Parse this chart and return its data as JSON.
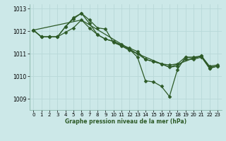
{
  "xlabel": "Graphe pression niveau de la mer (hPa)",
  "ylabel": "",
  "bg_color": "#cce8e8",
  "grid_color": "#b8d8d8",
  "line_color": "#2d5a27",
  "xlim": [
    -0.5,
    23.5
  ],
  "ylim": [
    1008.5,
    1013.2
  ],
  "yticks": [
    1009,
    1010,
    1011,
    1012,
    1013
  ],
  "xticks": [
    0,
    1,
    2,
    3,
    4,
    5,
    6,
    7,
    8,
    9,
    10,
    11,
    12,
    13,
    14,
    15,
    16,
    17,
    18,
    19,
    20,
    21,
    22,
    23
  ],
  "series": [
    {
      "x": [
        0,
        1,
        2,
        3,
        4,
        5,
        6,
        7,
        8,
        9,
        10,
        11,
        12,
        13,
        14,
        15,
        16,
        17,
        18,
        19,
        20,
        21,
        22,
        23
      ],
      "y": [
        1012.05,
        1011.75,
        1011.75,
        1011.75,
        1012.2,
        1012.6,
        1012.8,
        1012.35,
        1011.85,
        1011.65,
        1011.55,
        1011.4,
        1011.25,
        1011.1,
        1010.75,
        1010.65,
        1010.55,
        1010.5,
        1010.55,
        1010.85,
        1010.8,
        1010.9,
        1010.45,
        1010.5
      ],
      "has_markers": true
    },
    {
      "x": [
        0,
        1,
        2,
        3,
        4,
        5,
        6,
        7,
        8,
        9,
        10,
        11,
        12,
        13,
        14,
        15,
        16,
        17,
        18,
        19,
        20,
        21,
        22,
        23
      ],
      "y": [
        1012.05,
        1011.75,
        1011.75,
        1011.75,
        1011.95,
        1012.15,
        1012.5,
        1012.15,
        1011.85,
        1011.65,
        1011.55,
        1011.35,
        1011.15,
        1011.0,
        1010.75,
        1010.65,
        1010.55,
        1010.4,
        1010.45,
        1010.75,
        1010.75,
        1010.85,
        1010.35,
        1010.45
      ],
      "has_markers": true
    },
    {
      "x": [
        0,
        1,
        2,
        3,
        4,
        5,
        6,
        7,
        8,
        9,
        10,
        11,
        12,
        13,
        14,
        15,
        16,
        17,
        18,
        19,
        20,
        21,
        22,
        23
      ],
      "y": [
        1012.05,
        1011.75,
        1011.75,
        1011.75,
        1012.2,
        1012.55,
        1012.8,
        1012.5,
        1012.15,
        1012.1,
        1011.5,
        1011.35,
        1011.2,
        1010.85,
        1009.8,
        1009.75,
        1009.55,
        1009.1,
        1010.3,
        1010.85,
        1010.85,
        1010.9,
        1010.35,
        1010.45
      ],
      "has_markers": true
    },
    {
      "x": [
        0,
        6,
        13,
        17,
        20,
        21,
        22,
        23
      ],
      "y": [
        1012.05,
        1012.5,
        1011.0,
        1010.4,
        1010.8,
        1010.9,
        1010.4,
        1010.45
      ],
      "has_markers": false
    }
  ],
  "markersize": 2.5,
  "linewidth": 0.9,
  "tick_fontsize": 5.0,
  "xlabel_fontsize": 5.5
}
